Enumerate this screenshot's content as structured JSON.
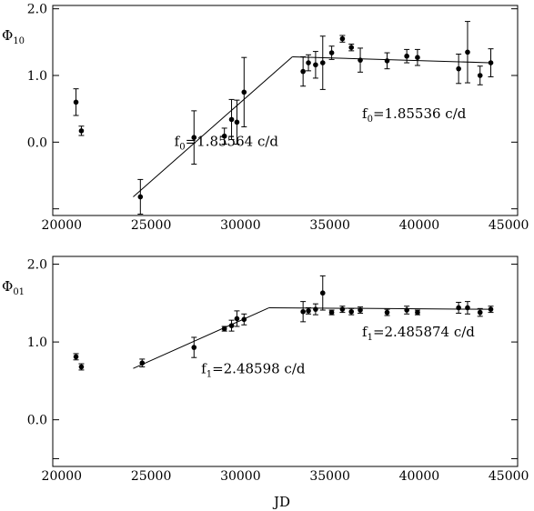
{
  "figure": {
    "shared_xlabel": "JD"
  },
  "chart_data": [
    {
      "type": "scatter",
      "title": "",
      "ylabel_base": "Φ",
      "ylabel_sub": "10",
      "xlim": [
        19500,
        45500
      ],
      "ylim": [
        -1.1,
        2.05
      ],
      "x_ticks": [
        20000,
        25000,
        30000,
        35000,
        40000,
        45000
      ],
      "x_tick_labels": [
        "20000",
        "25000",
        "30000",
        "35000",
        "40000",
        "45000"
      ],
      "y_ticks": [
        0.0,
        1.0,
        2.0
      ],
      "y_tick_labels": [
        "0.0",
        "1.0",
        "2.0"
      ],
      "y_minor_ticks": [
        -1.0
      ],
      "grid": false,
      "series": [
        {
          "points": [
            {
              "x": 20800,
              "y": 0.6,
              "err": 0.2
            },
            {
              "x": 21100,
              "y": 0.17,
              "err": 0.07
            },
            {
              "x": 24400,
              "y": -0.82,
              "err": 0.26
            },
            {
              "x": 27400,
              "y": 0.07,
              "err": 0.4
            },
            {
              "x": 29100,
              "y": 0.09,
              "err": 0.12
            },
            {
              "x": 29500,
              "y": 0.34,
              "err": 0.3
            },
            {
              "x": 29800,
              "y": 0.3,
              "err": 0.33
            },
            {
              "x": 30200,
              "y": 0.75,
              "err": 0.52
            },
            {
              "x": 33500,
              "y": 1.06,
              "err": 0.22
            },
            {
              "x": 33800,
              "y": 1.19,
              "err": 0.12
            },
            {
              "x": 34200,
              "y": 1.16,
              "err": 0.2
            },
            {
              "x": 34600,
              "y": 1.19,
              "err": 0.4
            },
            {
              "x": 35100,
              "y": 1.34,
              "err": 0.1
            },
            {
              "x": 35700,
              "y": 1.55,
              "err": 0.05
            },
            {
              "x": 36200,
              "y": 1.42,
              "err": 0.05
            },
            {
              "x": 36700,
              "y": 1.23,
              "err": 0.18
            },
            {
              "x": 38200,
              "y": 1.22,
              "err": 0.12
            },
            {
              "x": 39300,
              "y": 1.29,
              "err": 0.1
            },
            {
              "x": 39900,
              "y": 1.27,
              "err": 0.12
            },
            {
              "x": 42200,
              "y": 1.1,
              "err": 0.22
            },
            {
              "x": 42700,
              "y": 1.35,
              "err": 0.46
            },
            {
              "x": 43400,
              "y": 1.0,
              "err": 0.14
            },
            {
              "x": 44000,
              "y": 1.19,
              "err": 0.21
            }
          ]
        }
      ],
      "fit_lines": [
        {
          "x": [
            24000,
            32900
          ],
          "y": [
            -0.82,
            1.28
          ]
        },
        {
          "x": [
            32900,
            44100
          ],
          "y": [
            1.28,
            1.19
          ]
        }
      ],
      "annotations": [
        {
          "base": "f",
          "sub": "0",
          "text": "=1.85564 c/d",
          "x": 26300,
          "y": -0.06
        },
        {
          "base": "f",
          "sub": "0",
          "text": "=1.85536 c/d",
          "x": 36800,
          "y": 0.36
        }
      ]
    },
    {
      "type": "scatter",
      "title": "",
      "ylabel_base": "Φ",
      "ylabel_sub": "01",
      "xlim": [
        19500,
        45500
      ],
      "ylim": [
        -0.6,
        2.1
      ],
      "x_ticks": [
        20000,
        25000,
        30000,
        35000,
        40000,
        45000
      ],
      "x_tick_labels": [
        "20000",
        "25000",
        "30000",
        "35000",
        "40000",
        "45000"
      ],
      "y_ticks": [
        0.0,
        1.0,
        2.0
      ],
      "y_tick_labels": [
        "0.0",
        "1.0",
        "2.0"
      ],
      "y_minor_ticks": [
        -0.5
      ],
      "grid": false,
      "series": [
        {
          "points": [
            {
              "x": 20800,
              "y": 0.81,
              "err": 0.04
            },
            {
              "x": 21100,
              "y": 0.68,
              "err": 0.04
            },
            {
              "x": 24500,
              "y": 0.73,
              "err": 0.05
            },
            {
              "x": 27400,
              "y": 0.93,
              "err": 0.13
            },
            {
              "x": 29100,
              "y": 1.17,
              "err": 0.03
            },
            {
              "x": 29500,
              "y": 1.21,
              "err": 0.07
            },
            {
              "x": 29800,
              "y": 1.3,
              "err": 0.1
            },
            {
              "x": 30200,
              "y": 1.29,
              "err": 0.07
            },
            {
              "x": 33500,
              "y": 1.39,
              "err": 0.13
            },
            {
              "x": 33800,
              "y": 1.4,
              "err": 0.04
            },
            {
              "x": 34200,
              "y": 1.42,
              "err": 0.07
            },
            {
              "x": 34600,
              "y": 1.63,
              "err": 0.22
            },
            {
              "x": 35100,
              "y": 1.38,
              "err": 0.03
            },
            {
              "x": 35700,
              "y": 1.42,
              "err": 0.04
            },
            {
              "x": 36200,
              "y": 1.39,
              "err": 0.04
            },
            {
              "x": 36700,
              "y": 1.41,
              "err": 0.04
            },
            {
              "x": 38200,
              "y": 1.38,
              "err": 0.04
            },
            {
              "x": 39300,
              "y": 1.41,
              "err": 0.05
            },
            {
              "x": 39900,
              "y": 1.38,
              "err": 0.03
            },
            {
              "x": 42200,
              "y": 1.44,
              "err": 0.07
            },
            {
              "x": 42700,
              "y": 1.44,
              "err": 0.08
            },
            {
              "x": 43400,
              "y": 1.38,
              "err": 0.05
            },
            {
              "x": 44000,
              "y": 1.42,
              "err": 0.04
            }
          ]
        }
      ],
      "fit_lines": [
        {
          "x": [
            24000,
            31600
          ],
          "y": [
            0.66,
            1.44
          ]
        },
        {
          "x": [
            31600,
            44100
          ],
          "y": [
            1.44,
            1.42
          ]
        }
      ],
      "annotations": [
        {
          "base": "f",
          "sub": "1",
          "text": "=2.48598 c/d",
          "x": 27800,
          "y": 0.6
        },
        {
          "base": "f",
          "sub": "1",
          "text": "=2.485874 c/d",
          "x": 36800,
          "y": 1.07
        }
      ]
    }
  ]
}
